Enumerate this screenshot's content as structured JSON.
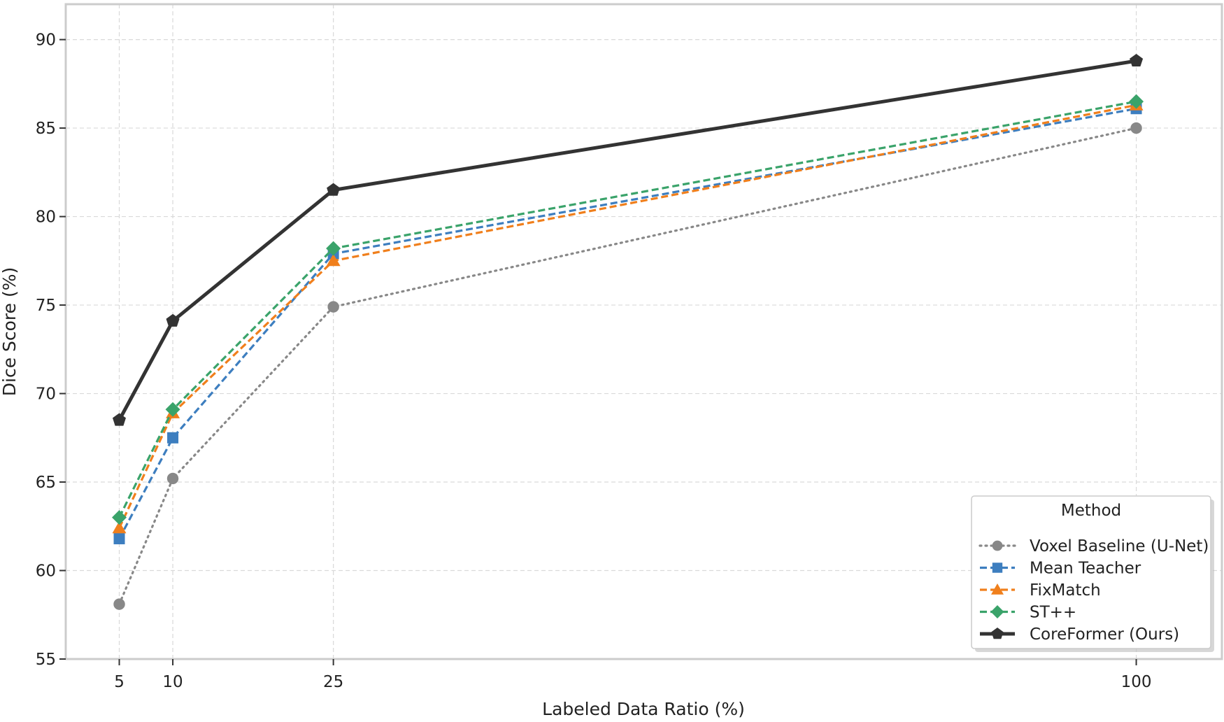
{
  "chart_data": {
    "type": "line",
    "title": "",
    "xlabel": "Labeled Data Ratio (%)",
    "ylabel": "Dice Score (%)",
    "x": [
      5,
      10,
      25,
      100
    ],
    "x_ticks": [
      "5",
      "10",
      "25",
      "100"
    ],
    "xlim": [
      0,
      108
    ],
    "ylim": [
      55,
      92
    ],
    "y_ticks": [
      55,
      60,
      65,
      70,
      75,
      80,
      85,
      90
    ],
    "grid": true,
    "legend": {
      "title": "Method",
      "placement": "lower-right"
    },
    "series": [
      {
        "name": "Voxel Baseline (U-Net)",
        "values": [
          58.1,
          65.2,
          74.9,
          85.0
        ],
        "color": "#888888",
        "line_style": "dotted",
        "marker": "circle"
      },
      {
        "name": "Mean Teacher",
        "values": [
          61.8,
          67.5,
          77.9,
          86.1
        ],
        "color": "#3d7ebf",
        "line_style": "dashed",
        "marker": "square"
      },
      {
        "name": "FixMatch",
        "values": [
          62.4,
          68.9,
          77.5,
          86.3
        ],
        "color": "#f07f1c",
        "line_style": "dashed",
        "marker": "triangle"
      },
      {
        "name": "ST++",
        "values": [
          63.0,
          69.1,
          78.2,
          86.5
        ],
        "color": "#3aa36a",
        "line_style": "dashed",
        "marker": "diamond"
      },
      {
        "name": "CoreFormer (Ours)",
        "values": [
          68.5,
          74.1,
          81.5,
          88.8
        ],
        "color": "#333333",
        "line_style": "solid",
        "marker": "pentagon"
      }
    ]
  }
}
